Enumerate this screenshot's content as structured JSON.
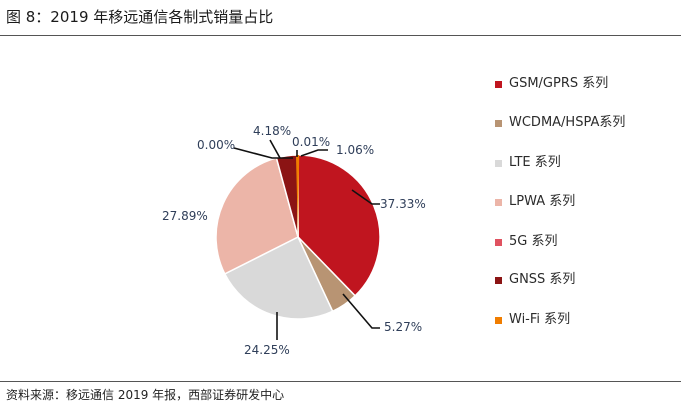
{
  "header": {
    "title": "图 8：2019 年移远通信各制式销量占比"
  },
  "footer": {
    "source": "资料来源：移远通信 2019 年报，西部证券研发中心"
  },
  "chart_data": {
    "type": "pie",
    "title": "2019 年移远通信各制式销量占比",
    "categories": [
      "GSM/GPRS 系列",
      "WCDMA/HSPA系列",
      "LTE 系列",
      "LPWA 系列",
      "5G 系列",
      "GNSS 系列",
      "Wi-Fi 系列"
    ],
    "values": [
      37.33,
      5.27,
      24.25,
      27.89,
      0.0,
      4.18,
      0.01
    ],
    "labels": [
      "37.33%",
      "5.27%",
      "24.25%",
      "27.89%",
      "0.00%",
      "4.18%",
      "0.01%"
    ],
    "colors": [
      "#c0151f",
      "#b89473",
      "#d9d9d9",
      "#ecb5a8",
      "#e05260",
      "#8b1414",
      "#f07d00"
    ],
    "extra_label": "1.06%",
    "legend_position": "right"
  }
}
